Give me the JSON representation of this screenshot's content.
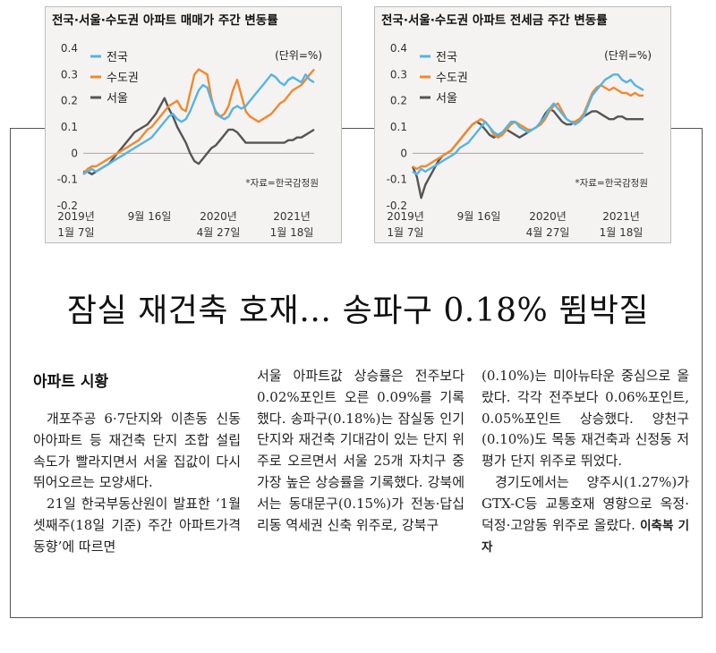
{
  "chart_data": [
    {
      "type": "line",
      "title": "전국·서울·수도권 아파트 매매가 주간 변동률",
      "unit": "(단위=%)",
      "source": "*자료=한국감정원",
      "ylim": [
        -0.2,
        0.4
      ],
      "y_ticks": [
        "0.4",
        "0.3",
        "0.2",
        "0.1",
        "0",
        "-0.1",
        "-0.2"
      ],
      "x_ticks": [
        {
          "line1": "2019년",
          "line2": "1월 7일"
        },
        {
          "line1": "9월 16일",
          "line2": ""
        },
        {
          "line1": "2020년",
          "line2": "4월 27일"
        },
        {
          "line1": "2021년",
          "line2": "1월 18일"
        }
      ],
      "legend": "top-left",
      "series": [
        {
          "name": "전국",
          "color": "#55b4e6",
          "values": [
            -0.08,
            -0.07,
            -0.06,
            -0.07,
            -0.06,
            -0.05,
            -0.04,
            -0.03,
            -0.02,
            -0.01,
            0.0,
            0.01,
            0.02,
            0.03,
            0.04,
            0.05,
            0.06,
            0.08,
            0.1,
            0.12,
            0.14,
            0.15,
            0.13,
            0.12,
            0.13,
            0.16,
            0.2,
            0.24,
            0.26,
            0.25,
            0.2,
            0.16,
            0.14,
            0.13,
            0.14,
            0.17,
            0.18,
            0.17,
            0.18,
            0.2,
            0.22,
            0.24,
            0.26,
            0.28,
            0.3,
            0.29,
            0.27,
            0.26,
            0.28,
            0.29,
            0.28,
            0.27,
            0.3,
            0.28,
            0.27
          ]
        },
        {
          "name": "수도권",
          "color": "#f0892d",
          "values": [
            -0.08,
            -0.06,
            -0.05,
            -0.05,
            -0.04,
            -0.03,
            -0.02,
            -0.01,
            0.0,
            0.01,
            0.02,
            0.03,
            0.04,
            0.05,
            0.07,
            0.09,
            0.1,
            0.12,
            0.14,
            0.16,
            0.18,
            0.19,
            0.2,
            0.17,
            0.16,
            0.23,
            0.3,
            0.32,
            0.31,
            0.3,
            0.21,
            0.15,
            0.14,
            0.15,
            0.18,
            0.24,
            0.28,
            0.22,
            0.16,
            0.14,
            0.13,
            0.12,
            0.13,
            0.14,
            0.15,
            0.17,
            0.19,
            0.2,
            0.22,
            0.24,
            0.25,
            0.26,
            0.28,
            0.3,
            0.32
          ]
        },
        {
          "name": "서울",
          "color": "#555555",
          "values": [
            -0.07,
            -0.07,
            -0.08,
            -0.07,
            -0.06,
            -0.05,
            -0.04,
            -0.02,
            0.0,
            0.02,
            0.04,
            0.06,
            0.08,
            0.09,
            0.1,
            0.11,
            0.13,
            0.15,
            0.18,
            0.21,
            0.17,
            0.14,
            0.1,
            0.07,
            0.04,
            0.0,
            -0.03,
            -0.04,
            -0.02,
            0.0,
            0.02,
            0.03,
            0.05,
            0.07,
            0.09,
            0.09,
            0.08,
            0.06,
            0.04,
            0.04,
            0.04,
            0.04,
            0.04,
            0.04,
            0.04,
            0.04,
            0.04,
            0.04,
            0.05,
            0.05,
            0.06,
            0.06,
            0.07,
            0.08,
            0.09
          ]
        }
      ]
    },
    {
      "type": "line",
      "title": "전국·서울·수도권 아파트 전세금 주간 변동률",
      "unit": "(단위=%)",
      "source": "*자료=한국감정원",
      "ylim": [
        -0.2,
        0.4
      ],
      "y_ticks": [
        "0.4",
        "0.3",
        "0.2",
        "0.1",
        "0",
        "-0.1",
        "-0.2"
      ],
      "x_ticks": [
        {
          "line1": "2019년",
          "line2": "1월 7일"
        },
        {
          "line1": "9월 16일",
          "line2": ""
        },
        {
          "line1": "2020년",
          "line2": "4월 27일"
        },
        {
          "line1": "2021년",
          "line2": "1월 18일"
        }
      ],
      "legend": "top-left",
      "series": [
        {
          "name": "전국",
          "color": "#55b4e6",
          "values": [
            -0.07,
            -0.08,
            -0.06,
            -0.07,
            -0.06,
            -0.05,
            -0.04,
            -0.03,
            -0.02,
            -0.01,
            0.0,
            0.02,
            0.03,
            0.04,
            0.06,
            0.08,
            0.1,
            0.12,
            0.1,
            0.08,
            0.07,
            0.08,
            0.1,
            0.12,
            0.12,
            0.1,
            0.09,
            0.08,
            0.09,
            0.1,
            0.12,
            0.14,
            0.17,
            0.19,
            0.17,
            0.15,
            0.13,
            0.12,
            0.11,
            0.12,
            0.14,
            0.18,
            0.22,
            0.24,
            0.26,
            0.28,
            0.29,
            0.3,
            0.3,
            0.28,
            0.27,
            0.28,
            0.26,
            0.25,
            0.24
          ]
        },
        {
          "name": "수도권",
          "color": "#f0892d",
          "values": [
            -0.05,
            -0.06,
            -0.05,
            -0.05,
            -0.04,
            -0.03,
            -0.02,
            -0.01,
            0.0,
            0.01,
            0.03,
            0.05,
            0.07,
            0.09,
            0.11,
            0.12,
            0.13,
            0.12,
            0.1,
            0.07,
            0.06,
            0.07,
            0.09,
            0.11,
            0.12,
            0.11,
            0.1,
            0.09,
            0.09,
            0.1,
            0.11,
            0.13,
            0.16,
            0.18,
            0.19,
            0.16,
            0.13,
            0.12,
            0.12,
            0.13,
            0.15,
            0.19,
            0.23,
            0.25,
            0.26,
            0.25,
            0.24,
            0.25,
            0.24,
            0.23,
            0.23,
            0.22,
            0.23,
            0.22,
            0.22
          ]
        },
        {
          "name": "서울",
          "color": "#555555",
          "values": [
            -0.05,
            -0.09,
            -0.17,
            -0.12,
            -0.09,
            -0.06,
            -0.03,
            -0.01,
            0.0,
            0.01,
            0.03,
            0.05,
            0.07,
            0.09,
            0.11,
            0.12,
            0.11,
            0.09,
            0.07,
            0.06,
            0.07,
            0.08,
            0.09,
            0.08,
            0.07,
            0.06,
            0.07,
            0.08,
            0.09,
            0.1,
            0.12,
            0.15,
            0.17,
            0.16,
            0.14,
            0.12,
            0.11,
            0.11,
            0.12,
            0.13,
            0.14,
            0.15,
            0.16,
            0.16,
            0.15,
            0.14,
            0.13,
            0.13,
            0.14,
            0.14,
            0.13,
            0.13,
            0.13,
            0.13,
            0.13
          ]
        }
      ]
    }
  ],
  "article": {
    "headline": "잠실 재건축 호재… 송파구 0.18% 뜀박질",
    "section": "아파트 시황",
    "col1_p1": "개포주공 6·7단지와 이촌동 신동아아파트 등 재건축 단지 조합 설립 속도가 빨라지면서 서울 집값이 다시 뛰어오르는 모양새다.",
    "col1_p2": "21일 한국부동산원이 발표한 ‘1월 셋째주(18일 기준) 주간 아파트가격 동향’에 따르면",
    "col2": "서울 아파트값 상승률은 전주보다 0.02%포인트 오른 0.09%를 기록했다. 송파구(0.18%)는 잠실동 인기 단지와 재건축 기대감이 있는 단지 위주로 오르면서 서울 25개 자치구 중 가장 높은 상승률을 기록했다. 강북에서는 동대문구(0.15%)가 전농·답십리동 역세권 신축 위주로, 강북구",
    "col3_p1": "(0.10%)는 미아뉴타운 중심으로 올랐다. 각각 전주보다 0.06%포인트, 0.05%포인트 상승했다. 양천구(0.10%)도 목동 재건축과 신정동 저평가 단지 위주로 뛰었다.",
    "col3_p2": "경기도에서는 양주시(1.27%)가 GTX-C등 교통호재 영향으로 옥정·덕정·고암동 위주로 올랐다.",
    "byline": "이축복 기자"
  }
}
